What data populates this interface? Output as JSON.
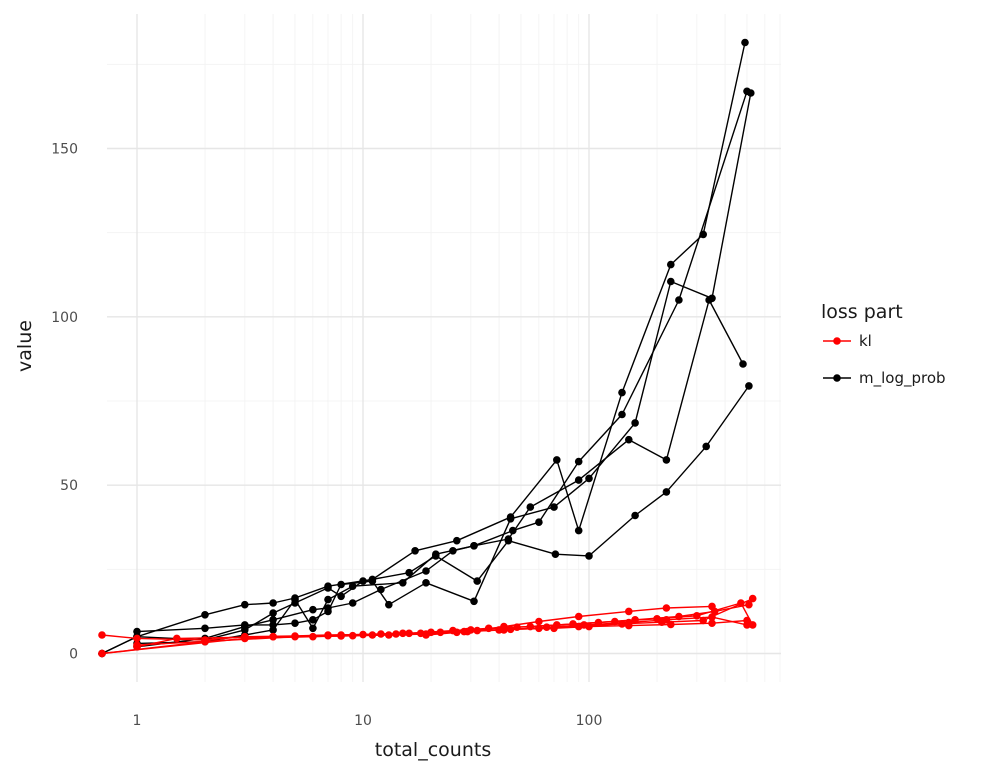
{
  "chart_data": {
    "type": "line",
    "xlabel": "total_counts",
    "ylabel": "value",
    "x_scale": "log10",
    "xlim": [
      0.75,
      600
    ],
    "ylim": [
      -8,
      190
    ],
    "x_ticks": [
      1,
      10,
      100
    ],
    "x_tick_labels": [
      "1",
      "10",
      "100"
    ],
    "y_ticks": [
      0,
      50,
      100,
      150
    ],
    "y_tick_labels": [
      "0",
      "50",
      "100",
      "150"
    ],
    "grid": true,
    "legend": {
      "title": "loss part",
      "position": "right"
    },
    "series": [
      {
        "name": "kl",
        "color": "#ff0000",
        "lines": [
          {
            "x": [
              0.7,
              1,
              2,
              3,
              5,
              7,
              10,
              15,
              22,
              32,
              45,
              70,
              100,
              150,
              230,
              350,
              500
            ],
            "y": [
              5.5,
              4.5,
              4.0,
              5.0,
              5.2,
              5.5,
              5.6,
              6.0,
              6.3,
              6.8,
              7.2,
              7.5,
              8.0,
              8.3,
              8.6,
              9.0,
              9.8
            ]
          },
          {
            "x": [
              0.7,
              2,
              4,
              8,
              12,
              18,
              28,
              42,
              60,
              90,
              140,
              210,
              320,
              530
            ],
            "y": [
              0.0,
              3.5,
              5.0,
              5.5,
              5.8,
              6.0,
              6.5,
              7.0,
              7.5,
              8.0,
              8.8,
              9.3,
              9.8,
              16.3
            ]
          },
          {
            "x": [
              0.7,
              3,
              6,
              9,
              14,
              20,
              30,
              48,
              72,
              110,
              160,
              250,
              360,
              510
            ],
            "y": [
              0.0,
              4.5,
              5.0,
              5.3,
              5.8,
              6.3,
              7.0,
              7.8,
              8.5,
              9.2,
              10.0,
              11.0,
              12.5,
              14.5
            ]
          },
          {
            "x": [
              1,
              1.5,
              4,
              7,
              11,
              16,
              25,
              36,
              55,
              85,
              130,
              200,
              300,
              470,
              530
            ],
            "y": [
              2.0,
              4.5,
              5.0,
              5.3,
              5.5,
              6.0,
              6.8,
              7.5,
              8.0,
              8.8,
              9.5,
              10.3,
              11.2,
              15.0,
              8.5
            ]
          },
          {
            "x": [
              1,
              5,
              8,
              13,
              19,
              26,
              40,
              65,
              95,
              150,
              220,
              350,
              500
            ],
            "y": [
              2.5,
              5.0,
              5.2,
              5.5,
              5.8,
              6.3,
              7.0,
              7.8,
              8.5,
              9.2,
              10.0,
              10.8,
              8.5
            ]
          },
          {
            "x": [
              19,
              29,
              42,
              60,
              90,
              150,
              220,
              350
            ],
            "y": [
              5.5,
              6.5,
              8.0,
              9.5,
              11.0,
              12.5,
              13.5,
              14.0
            ]
          }
        ]
      },
      {
        "name": "m_log_prob",
        "color": "#000000",
        "lines": [
          {
            "x": [
              0.7,
              1,
              2,
              3,
              4,
              5,
              7,
              11,
              17,
              26,
              45,
              72,
              90,
              140,
              230,
              320,
              490
            ],
            "y": [
              0,
              5,
              11.5,
              14.5,
              15,
              16.5,
              20,
              22,
              30.5,
              33.5,
              40.5,
              57.5,
              36.5,
              77.5,
              115.5,
              124.5,
              181.5
            ]
          },
          {
            "x": [
              1,
              2,
              3,
              4,
              6,
              7,
              9,
              12,
              19,
              25,
              31,
              44,
              55,
              90,
              150,
              220,
              340,
              480
            ],
            "y": [
              2,
              4.5,
              8,
              10,
              13,
              13.5,
              15,
              19,
              24.5,
              30.5,
              32,
              34,
              43.5,
              51.5,
              63.5,
              57.5,
              105,
              86
            ]
          },
          {
            "x": [
              1,
              2,
              3,
              4,
              5,
              6,
              7,
              8,
              11,
              13,
              19,
              31,
              45,
              70,
              100,
              160,
              230,
              350,
              520
            ],
            "y": [
              6.5,
              7.5,
              8.5,
              8.5,
              9,
              10,
              12.5,
              20.5,
              21.5,
              14.5,
              21,
              15.5,
              40,
              43.5,
              52,
              68.5,
              110.5,
              105.5,
              166.5
            ]
          },
          {
            "x": [
              1,
              2,
              3,
              4,
              5,
              6,
              7,
              9,
              15,
              21,
              31,
              46,
              60,
              90,
              140,
              250,
              500
            ],
            "y": [
              3,
              3.5,
              5.5,
              7,
              16,
              7.5,
              16,
              20,
              21,
              29.5,
              32,
              36.5,
              39,
              57,
              71,
              105,
              167
            ]
          },
          {
            "x": [
              0.7,
              1,
              2,
              3,
              4,
              5,
              7,
              8,
              10,
              16,
              21,
              32,
              44,
              71,
              100,
              160,
              220,
              330,
              510
            ],
            "y": [
              0,
              5,
              4,
              7,
              12,
              15,
              19.5,
              17,
              21.5,
              24,
              29,
              21.5,
              33.5,
              29.5,
              29,
              41,
              48,
              61.5,
              79.5
            ]
          }
        ]
      }
    ]
  }
}
